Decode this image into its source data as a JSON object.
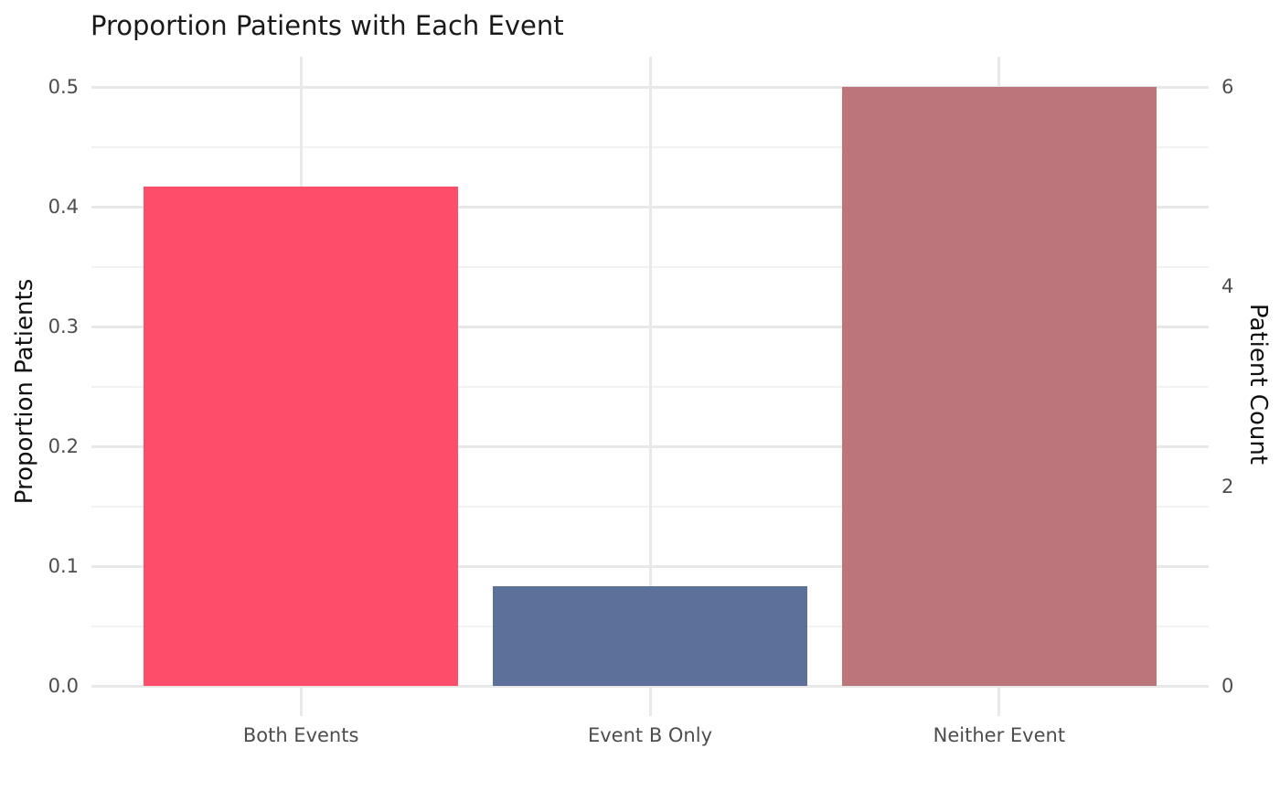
{
  "title": "Proportion Patients with Each Event",
  "chart_data": {
    "type": "bar",
    "title": "Proportion Patients with Each Event",
    "categories": [
      "Both Events",
      "Event B Only",
      "Neither Event"
    ],
    "values": [
      0.4167,
      0.0833,
      0.5
    ],
    "counts": [
      5,
      1,
      6
    ],
    "bar_colors": [
      "#fc4d6b",
      "#5c7199",
      "#bc767b"
    ],
    "xlabel": "",
    "ylabel_left": "Proportion Patients",
    "ylabel_right": "Patient Count",
    "ylim_left": [
      0,
      0.5
    ],
    "ylim_right": [
      0,
      6
    ],
    "yticks_left": [
      "0.0",
      "0.1",
      "0.2",
      "0.3",
      "0.4",
      "0.5"
    ],
    "yticks_right": [
      "0",
      "2",
      "4",
      "6"
    ],
    "minor_gridlines": [
      0.05,
      0.15,
      0.25,
      0.35,
      0.45
    ],
    "major_gridlines": [
      0.0,
      0.1,
      0.2,
      0.3,
      0.4,
      0.5
    ],
    "legend": "none",
    "grid": "horizontal major+minor, vertical at category centers",
    "background": "#ffffff"
  },
  "colors": {
    "grid_major": "#e8e8e8",
    "grid_minor": "#f2f2f2",
    "grid_vertical": "#e9e9e9",
    "title_text": "#1a1a1a",
    "axis_title_text": "#111111",
    "tick_text": "#4d4d4d"
  }
}
